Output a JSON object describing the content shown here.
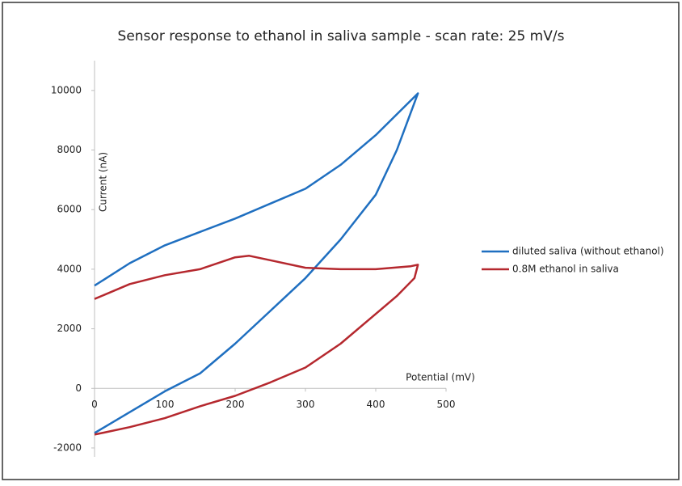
{
  "chart_data": {
    "type": "line",
    "title": "Sensor response to ethanol in saliva sample - scan rate: 25 mV/s",
    "x_label": "Potential (mV)",
    "y_label": "Current (nA)",
    "xlim": [
      0,
      500
    ],
    "xticks": [
      0,
      100,
      200,
      300,
      400,
      500
    ],
    "ylim": [
      -2300,
      11000
    ],
    "yticks": [
      -2000,
      0,
      2000,
      4000,
      6000,
      8000,
      10000
    ],
    "grid": false,
    "legend": "right",
    "series": [
      {
        "name": "diluted saliva (without ethanol)",
        "color": "#1f6fc0",
        "x": [
          0,
          50,
          100,
          150,
          200,
          250,
          300,
          350,
          400,
          460,
          430,
          400,
          350,
          300,
          250,
          200,
          150,
          100,
          50,
          0
        ],
        "values": [
          3450,
          4200,
          4800,
          5250,
          5700,
          6200,
          6700,
          7500,
          8500,
          9900,
          8000,
          6500,
          5000,
          3700,
          2600,
          1500,
          500,
          -100,
          -800,
          -1500
        ]
      },
      {
        "name": "0.8M ethanol in saliva",
        "color": "#b5282e",
        "x": [
          0,
          50,
          100,
          150,
          200,
          220,
          250,
          300,
          350,
          400,
          450,
          460,
          455,
          430,
          400,
          350,
          300,
          250,
          200,
          150,
          100,
          50,
          0
        ],
        "values": [
          3000,
          3500,
          3800,
          4000,
          4400,
          4450,
          4300,
          4050,
          4000,
          4000,
          4100,
          4150,
          3700,
          3100,
          2500,
          1500,
          700,
          200,
          -250,
          -600,
          -1000,
          -1300,
          -1550
        ]
      }
    ]
  }
}
